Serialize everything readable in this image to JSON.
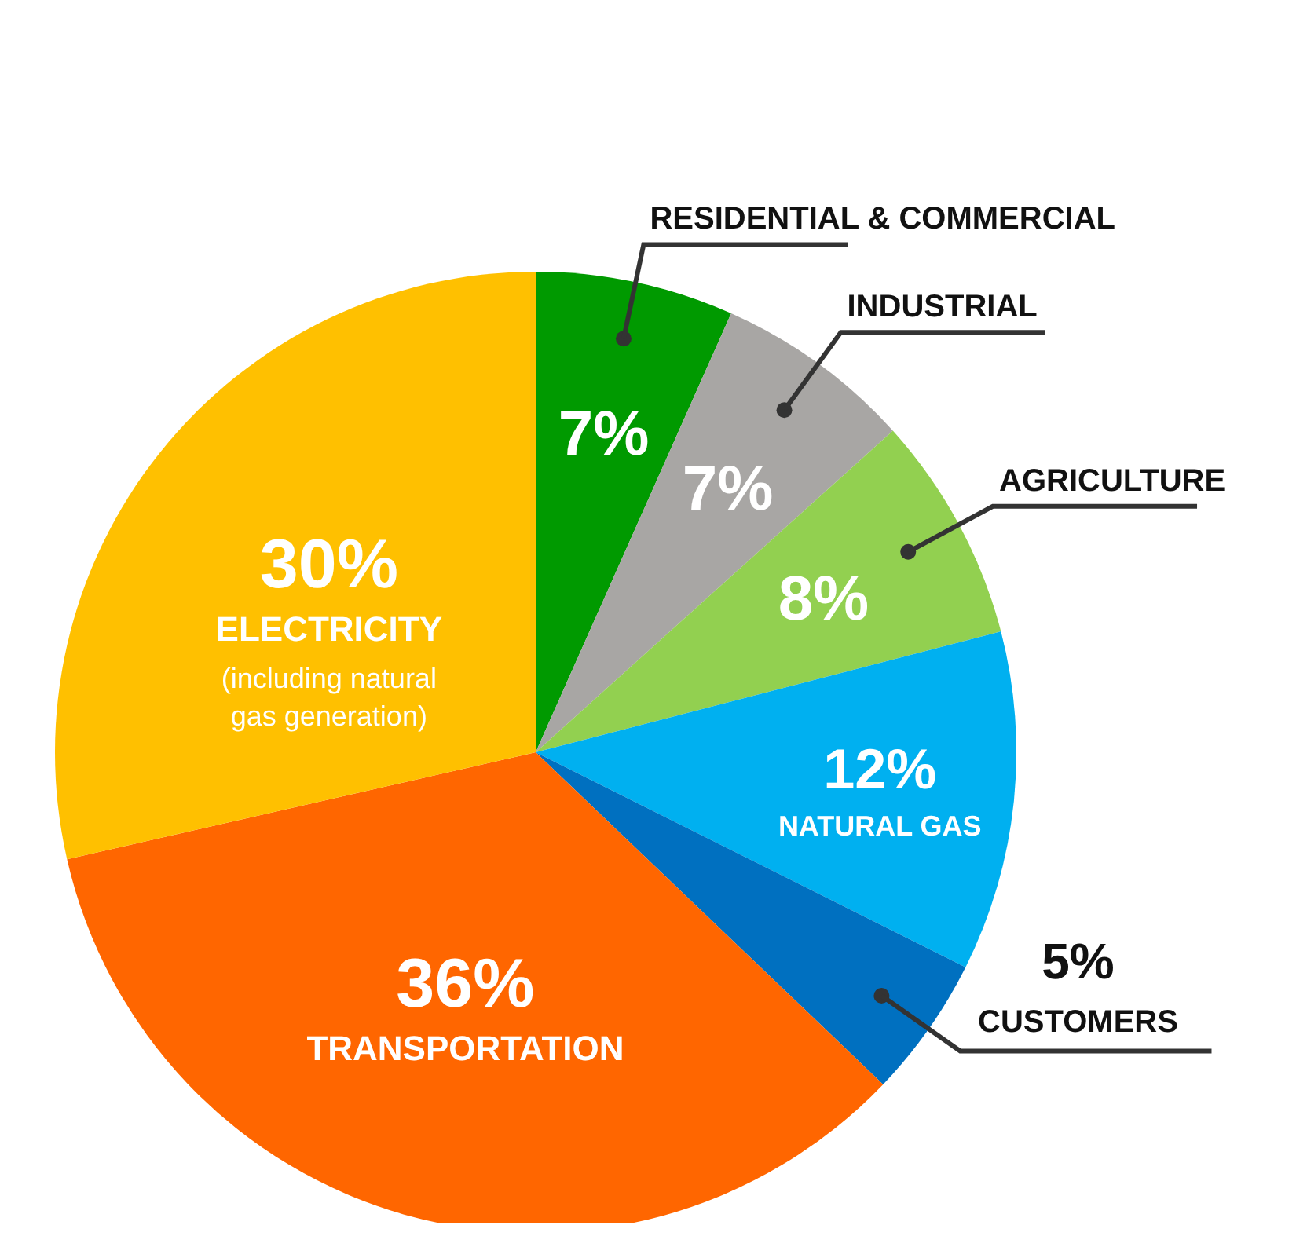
{
  "chart_data": {
    "type": "pie",
    "categories": [
      "RESIDENTIAL & COMMERCIAL",
      "INDUSTRIAL",
      "AGRICULTURE",
      "NATURAL GAS",
      "CUSTOMERS",
      "TRANSPORTATION",
      "ELECTRICITY"
    ],
    "values": [
      7,
      7,
      8,
      12,
      5,
      36,
      30
    ],
    "colors": [
      "#009a00",
      "#a8a6a4",
      "#92d050",
      "#00b0f0",
      "#0070c0",
      "#ff6600",
      "#ffc000"
    ],
    "value_labels": [
      "7%",
      "7%",
      "8%",
      "12%",
      "5%",
      "36%",
      "30%"
    ],
    "annotations": [
      "(including natural gas generation)"
    ],
    "legend": false
  }
}
